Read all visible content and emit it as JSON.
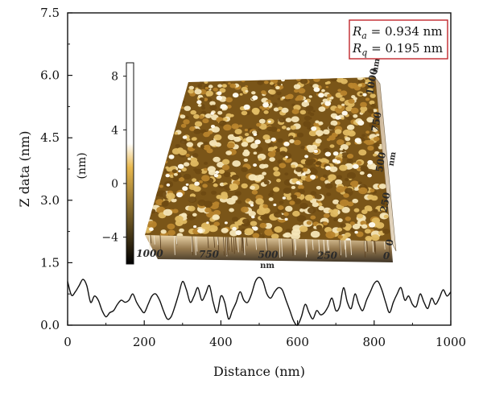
{
  "chart_data": {
    "type": "line",
    "xlabel": "Distance (nm)",
    "ylabel": "Z data (nm)",
    "xlim": [
      0,
      1000
    ],
    "ylim": [
      0,
      7.5
    ],
    "xticks": [
      0,
      200,
      400,
      600,
      800,
      1000
    ],
    "xtick_labels": [
      "0",
      "200",
      "400",
      "600",
      "800",
      "1000"
    ],
    "yticks": [
      0,
      1.5,
      3.0,
      4.5,
      6.0,
      7.5
    ],
    "ytick_labels": [
      "0.0",
      "1.5",
      "3.0",
      "4.5",
      "6.0",
      "7.5"
    ],
    "grid": false,
    "series": [
      {
        "x": [
          0,
          10,
          20,
          30,
          40,
          50,
          60,
          70,
          80,
          90,
          100,
          110,
          120,
          130,
          140,
          150,
          160,
          170,
          180,
          190,
          200,
          210,
          220,
          230,
          240,
          250,
          260,
          270,
          280,
          290,
          300,
          310,
          320,
          330,
          340,
          350,
          360,
          370,
          380,
          390,
          400,
          410,
          420,
          430,
          440,
          450,
          460,
          470,
          480,
          490,
          500,
          510,
          520,
          530,
          540,
          550,
          560,
          570,
          580,
          590,
          600,
          610,
          620,
          630,
          640,
          650,
          660,
          670,
          680,
          690,
          700,
          710,
          720,
          730,
          740,
          750,
          760,
          770,
          780,
          790,
          800,
          810,
          820,
          830,
          840,
          850,
          860,
          870,
          880,
          890,
          900,
          910,
          920,
          930,
          940,
          950,
          960,
          970,
          980,
          990,
          1000
        ],
        "y": [
          1.05,
          0.72,
          0.8,
          0.95,
          1.1,
          0.95,
          0.55,
          0.7,
          0.6,
          0.35,
          0.2,
          0.3,
          0.35,
          0.5,
          0.6,
          0.55,
          0.6,
          0.75,
          0.55,
          0.4,
          0.3,
          0.5,
          0.7,
          0.75,
          0.6,
          0.35,
          0.15,
          0.2,
          0.45,
          0.75,
          1.05,
          0.85,
          0.55,
          0.7,
          0.9,
          0.6,
          0.75,
          0.95,
          0.55,
          0.3,
          0.7,
          0.55,
          0.15,
          0.35,
          0.55,
          0.8,
          0.6,
          0.55,
          0.75,
          1.05,
          1.15,
          1.05,
          0.75,
          0.65,
          0.8,
          0.9,
          0.85,
          0.6,
          0.35,
          0.1,
          0.0,
          0.2,
          0.5,
          0.3,
          0.15,
          0.35,
          0.25,
          0.3,
          0.45,
          0.65,
          0.35,
          0.45,
          0.9,
          0.55,
          0.4,
          0.75,
          0.5,
          0.35,
          0.6,
          0.8,
          1.0,
          1.05,
          0.85,
          0.55,
          0.3,
          0.55,
          0.75,
          0.9,
          0.6,
          0.7,
          0.5,
          0.45,
          0.75,
          0.55,
          0.4,
          0.65,
          0.5,
          0.65,
          0.85,
          0.7,
          0.8
        ]
      }
    ],
    "annotations": [
      "R_a = 0.934 nm",
      "R_q = 0.195 nm"
    ]
  },
  "roughness": {
    "ra_symbol": "R",
    "ra_sub": "a",
    "ra_value": " = 0.934 nm",
    "rq_symbol": "R",
    "rq_sub": "q",
    "rq_value": " = 0.195 nm",
    "box_color": "#c0262c"
  },
  "inset": {
    "colorbar_label": "(nm)",
    "colorbar_ticks": [
      {
        "value": 8,
        "label": "8"
      },
      {
        "value": 4,
        "label": "4"
      },
      {
        "value": 0,
        "label": "0"
      },
      {
        "value": -4,
        "label": "−4"
      }
    ],
    "colorbar_range": [
      -6,
      9
    ],
    "colorbar_top_color": "#ffffff",
    "colorbar_mid_color": "#e8b84e",
    "colorbar_bottom_color": "#000000",
    "surface_colors": [
      "#6e4a12",
      "#b8842c",
      "#e0ba62",
      "#f6e6b8"
    ],
    "front_axis_ticks": [
      "1000",
      "750",
      "500",
      "250",
      "0"
    ],
    "front_axis_unit": "nm",
    "side_axis_ticks": [
      "1000",
      "750",
      "500",
      "250",
      "0"
    ],
    "side_axis_unit": "nm",
    "side_axis_top_unit": "nm"
  }
}
